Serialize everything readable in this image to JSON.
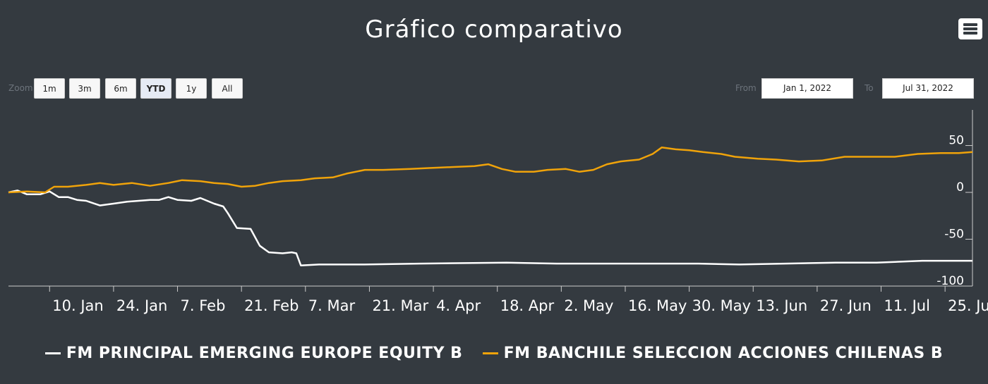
{
  "title": "Gráfico comparativo",
  "menu": {
    "icon": "hamburger-menu-icon"
  },
  "range_selector": {
    "zoom_label": "Zoom",
    "buttons": [
      "1m",
      "3m",
      "6m",
      "YTD",
      "1y",
      "All"
    ],
    "active": "YTD",
    "from_label": "From",
    "to_label": "To",
    "from_value": "Jan 1, 2022",
    "to_value": "Jul 31, 2022"
  },
  "colors": {
    "background": "#343a40",
    "series_white": "#ffffff",
    "series_orange": "#f0a30a",
    "axis": "#cccccc"
  },
  "chart_data": {
    "type": "line",
    "title": "Gráfico comparativo",
    "x_range": [
      "2022-01-01",
      "2022-07-31"
    ],
    "x_tick_labels": [
      "10. Jan",
      "24. Jan",
      "7. Feb",
      "21. Feb",
      "7. Mar",
      "21. Mar",
      "4. Apr",
      "18. Apr",
      "2. May",
      "16. May",
      "30. May",
      "13. Jun",
      "27. Jun",
      "11. Jul",
      "25. Jul"
    ],
    "x_tick_dates": [
      "2022-01-10",
      "2022-01-24",
      "2022-02-07",
      "2022-02-21",
      "2022-03-07",
      "2022-03-21",
      "2022-04-04",
      "2022-04-18",
      "2022-05-02",
      "2022-05-16",
      "2022-05-30",
      "2022-06-13",
      "2022-06-27",
      "2022-07-11",
      "2022-07-25"
    ],
    "y_ticks": [
      50,
      0,
      -50,
      -100
    ],
    "y_tick_labels": [
      "50",
      "0",
      "-50",
      "-100"
    ],
    "ylim": [
      -100,
      85
    ],
    "y_axis_side": "right",
    "legend_position": "bottom-center",
    "series": [
      {
        "name": "FM PRINCIPAL EMERGING EUROPE EQUITY B",
        "color": "#ffffff",
        "points": [
          [
            "2022-01-01",
            0
          ],
          [
            "2022-01-03",
            2
          ],
          [
            "2022-01-05",
            -2
          ],
          [
            "2022-01-08",
            -2
          ],
          [
            "2022-01-10",
            1
          ],
          [
            "2022-01-12",
            -5
          ],
          [
            "2022-01-14",
            -5
          ],
          [
            "2022-01-16",
            -8
          ],
          [
            "2022-01-18",
            -9
          ],
          [
            "2022-01-21",
            -14
          ],
          [
            "2022-01-24",
            -12
          ],
          [
            "2022-01-27",
            -10
          ],
          [
            "2022-02-01",
            -8
          ],
          [
            "2022-02-03",
            -8
          ],
          [
            "2022-02-05",
            -5
          ],
          [
            "2022-02-07",
            -8
          ],
          [
            "2022-02-10",
            -9
          ],
          [
            "2022-02-12",
            -6
          ],
          [
            "2022-02-15",
            -12
          ],
          [
            "2022-02-17",
            -15
          ],
          [
            "2022-02-18",
            -22
          ],
          [
            "2022-02-20",
            -38
          ],
          [
            "2022-02-23",
            -39
          ],
          [
            "2022-02-25",
            -57
          ],
          [
            "2022-02-27",
            -64
          ],
          [
            "2022-03-02",
            -65
          ],
          [
            "2022-03-04",
            -64
          ],
          [
            "2022-03-05",
            -65
          ],
          [
            "2022-03-06",
            -78
          ],
          [
            "2022-03-10",
            -77
          ],
          [
            "2022-03-20",
            -77
          ],
          [
            "2022-04-01",
            -76
          ],
          [
            "2022-04-20",
            -75
          ],
          [
            "2022-05-01",
            -76
          ],
          [
            "2022-05-20",
            -76
          ],
          [
            "2022-06-01",
            -76
          ],
          [
            "2022-06-10",
            -77
          ],
          [
            "2022-06-20",
            -76
          ],
          [
            "2022-07-01",
            -75
          ],
          [
            "2022-07-10",
            -75
          ],
          [
            "2022-07-20",
            -73
          ],
          [
            "2022-07-31",
            -73
          ]
        ]
      },
      {
        "name": "FM BANCHILE SELECCION ACCIONES CHILENAS B",
        "color": "#f0a30a",
        "points": [
          [
            "2022-01-01",
            0
          ],
          [
            "2022-01-05",
            1
          ],
          [
            "2022-01-09",
            0
          ],
          [
            "2022-01-11",
            6
          ],
          [
            "2022-01-14",
            6
          ],
          [
            "2022-01-18",
            8
          ],
          [
            "2022-01-21",
            10
          ],
          [
            "2022-01-24",
            8
          ],
          [
            "2022-01-28",
            10
          ],
          [
            "2022-02-01",
            7
          ],
          [
            "2022-02-05",
            10
          ],
          [
            "2022-02-08",
            13
          ],
          [
            "2022-02-12",
            12
          ],
          [
            "2022-02-15",
            10
          ],
          [
            "2022-02-18",
            9
          ],
          [
            "2022-02-21",
            6
          ],
          [
            "2022-02-24",
            7
          ],
          [
            "2022-02-27",
            10
          ],
          [
            "2022-03-02",
            12
          ],
          [
            "2022-03-06",
            13
          ],
          [
            "2022-03-09",
            15
          ],
          [
            "2022-03-13",
            16
          ],
          [
            "2022-03-16",
            20
          ],
          [
            "2022-03-20",
            24
          ],
          [
            "2022-03-24",
            24
          ],
          [
            "2022-03-30",
            25
          ],
          [
            "2022-04-03",
            26
          ],
          [
            "2022-04-08",
            27
          ],
          [
            "2022-04-13",
            28
          ],
          [
            "2022-04-16",
            30
          ],
          [
            "2022-04-19",
            25
          ],
          [
            "2022-04-22",
            22
          ],
          [
            "2022-04-26",
            22
          ],
          [
            "2022-04-29",
            24
          ],
          [
            "2022-05-03",
            25
          ],
          [
            "2022-05-06",
            22
          ],
          [
            "2022-05-09",
            24
          ],
          [
            "2022-05-12",
            30
          ],
          [
            "2022-05-15",
            33
          ],
          [
            "2022-05-19",
            35
          ],
          [
            "2022-05-22",
            41
          ],
          [
            "2022-05-24",
            48
          ],
          [
            "2022-05-27",
            46
          ],
          [
            "2022-05-30",
            45
          ],
          [
            "2022-06-02",
            43
          ],
          [
            "2022-06-06",
            41
          ],
          [
            "2022-06-09",
            38
          ],
          [
            "2022-06-14",
            36
          ],
          [
            "2022-06-18",
            35
          ],
          [
            "2022-06-23",
            33
          ],
          [
            "2022-06-28",
            34
          ],
          [
            "2022-07-03",
            38
          ],
          [
            "2022-07-08",
            38
          ],
          [
            "2022-07-14",
            38
          ],
          [
            "2022-07-19",
            41
          ],
          [
            "2022-07-24",
            42
          ],
          [
            "2022-07-28",
            42
          ],
          [
            "2022-07-31",
            43
          ]
        ]
      }
    ]
  }
}
